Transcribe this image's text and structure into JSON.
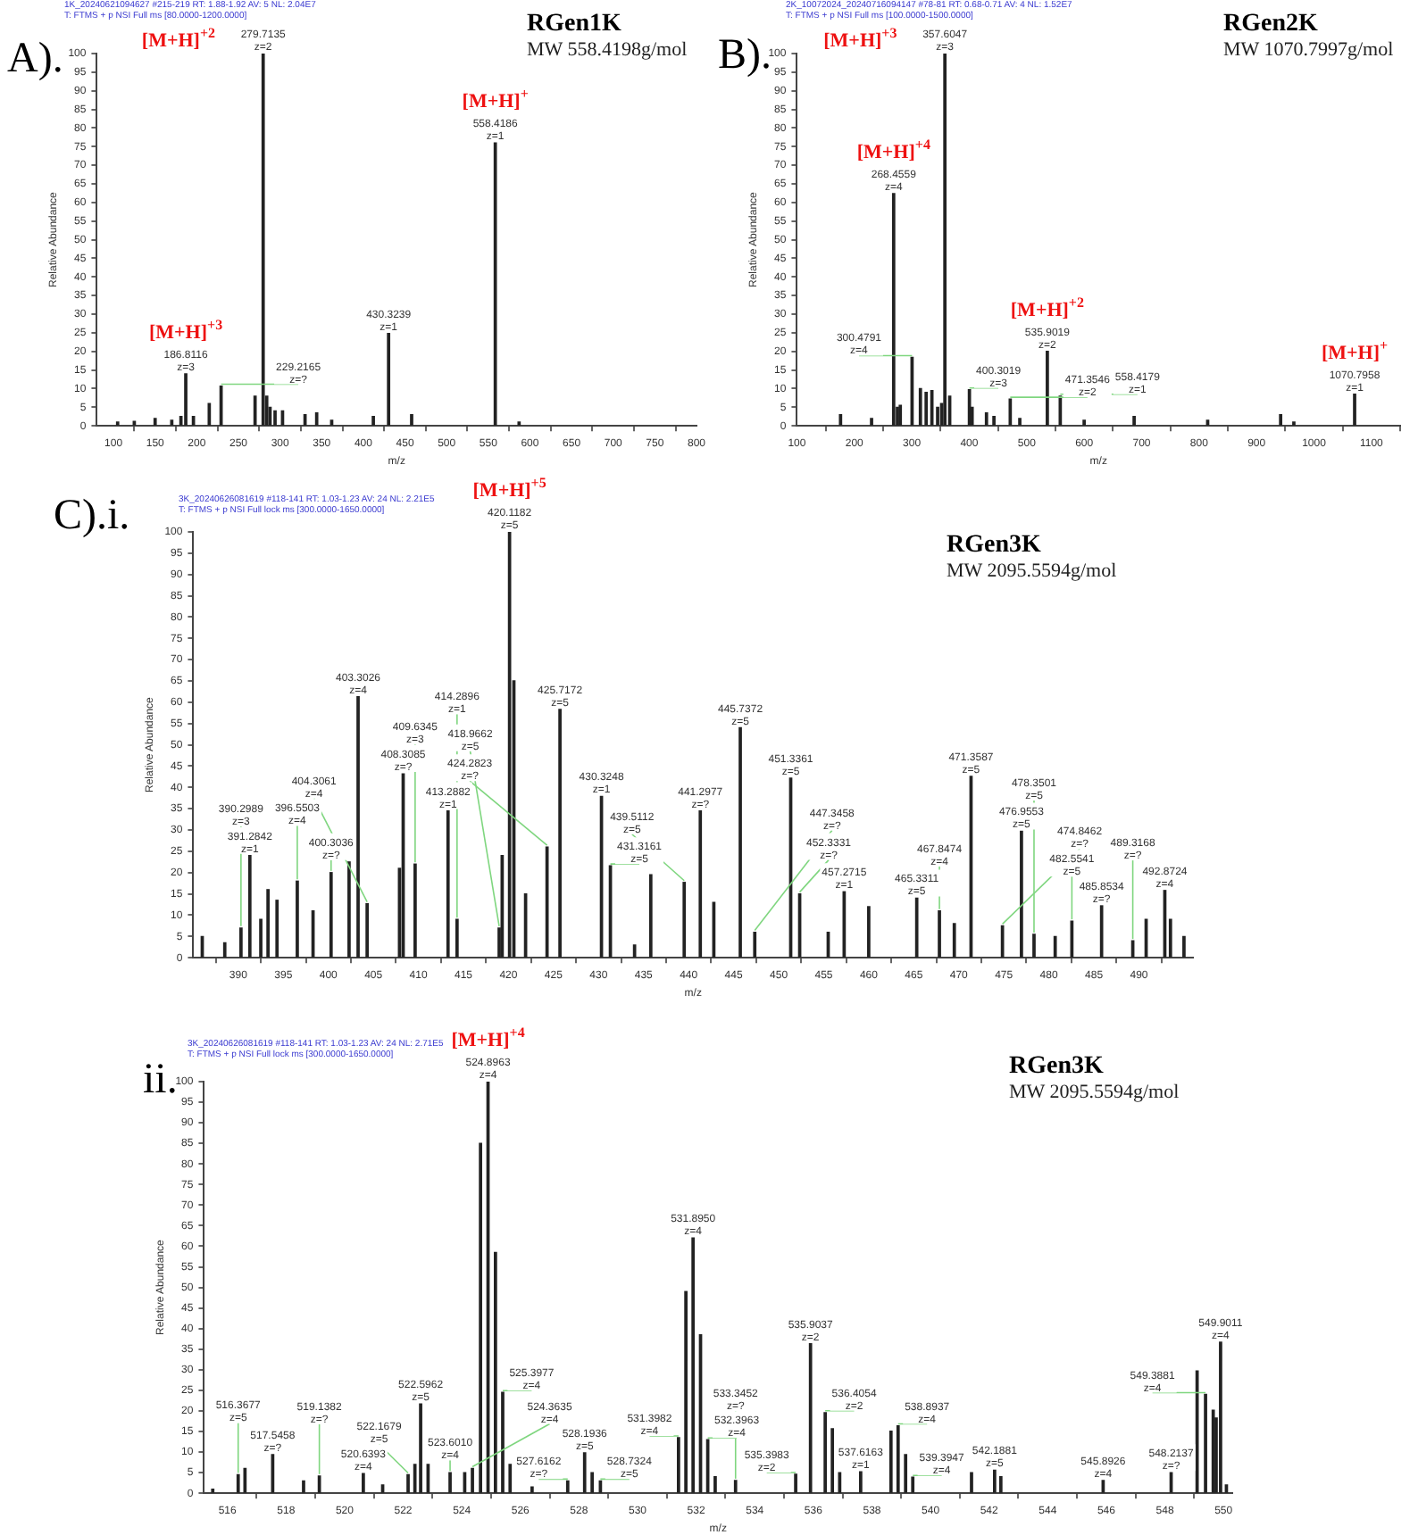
{
  "chart_data": [
    {
      "type": "bar",
      "title": "RGen1K",
      "subtitle": "MW 558.4198g/mol",
      "xlabel": "m/z",
      "ylabel": "Relative Abundance",
      "xlim": [
        80,
        800
      ],
      "xticks": [
        100,
        150,
        200,
        250,
        300,
        350,
        400,
        450,
        500,
        550,
        600,
        650,
        700,
        750,
        800
      ],
      "ylim": [
        0,
        100
      ],
      "yticks": [
        0,
        5,
        10,
        15,
        20,
        25,
        30,
        35,
        40,
        45,
        50,
        55,
        60,
        65,
        70,
        75,
        80,
        85,
        90,
        95,
        100
      ],
      "series": [
        {
          "color": "#222222",
          "x": [
            105,
            125,
            150,
            170,
            181,
            186.8116,
            196,
            215,
            229.2165,
            270,
            279.7135,
            284,
            288,
            294,
            303,
            330,
            344,
            362,
            412,
            430.3239,
            458,
            558.4186,
            587
          ],
          "values": [
            1,
            1.2,
            2,
            1.5,
            2.5,
            14,
            2.5,
            6,
            10.7,
            8,
            100,
            8,
            5,
            4,
            4,
            3,
            3.5,
            1.5,
            2.5,
            24.8,
            3,
            76,
            1
          ]
        }
      ],
      "annotations": [
        "A).",
        "1K_20240621094627 #215-219  RT: 1.88-1.92  AV: 5  NL: 2.04E7",
        "T: FTMS + p NSI Full ms [80.0000-1200.0000]",
        {
          "text": "279.7135 z=2",
          "x": 279.7135,
          "y": 100
        },
        {
          "text": "[M+H]$^{+2}$",
          "x": 279.7135,
          "y": 100
        },
        {
          "text": "558.4186 z=1",
          "x": 558.4186,
          "y": 76
        },
        {
          "text": "[M+H]$^{+}$",
          "x": 558.4186,
          "y": 76
        },
        {
          "text": "430.3239 z=1",
          "x": 430.3239,
          "y": 24.8
        },
        {
          "text": "186.8116 z=3",
          "x": 186.8116,
          "y": 14
        },
        {
          "text": "[M+H]$^{+3}$",
          "x": 186.8116,
          "y": 14
        },
        {
          "text": "229.2165 z=?",
          "x": 229.2165,
          "y": 10.7
        }
      ]
    },
    {
      "type": "bar",
      "title": "RGen2K",
      "subtitle": "MW 1070.7997g/mol",
      "xlabel": "m/z",
      "ylabel": "Relative Abundance",
      "xlim": [
        100,
        1150
      ],
      "xticks": [
        100,
        200,
        300,
        400,
        500,
        600,
        700,
        800,
        900,
        1000,
        1100
      ],
      "ylim": [
        0,
        100
      ],
      "yticks": [
        0,
        5,
        10,
        15,
        20,
        25,
        30,
        35,
        40,
        45,
        50,
        55,
        60,
        65,
        70,
        75,
        80,
        85,
        90,
        95,
        100
      ],
      "series": [
        {
          "color": "#222222",
          "x": [
            176,
            230,
            268.4559,
            275,
            280,
            300.4791,
            315,
            325,
            335,
            345,
            352,
            357.6047,
            366,
            400.3019,
            405,
            430,
            443,
            471.3546,
            488,
            535.9019,
            558.4179,
            600,
            687,
            815,
            942,
            965,
            1070.7958
          ],
          "values": [
            3,
            2,
            62.4,
            5,
            5.5,
            18.4,
            10,
            9,
            9.5,
            5,
            6,
            100,
            8,
            9.7,
            5,
            3.5,
            2.5,
            7.2,
            2,
            20,
            8,
            1.5,
            2.5,
            1.5,
            3,
            1,
            8.5
          ]
        }
      ],
      "annotations": [
        "B).",
        "2K_10072024_20240716094147 #78-81  RT: 0.68-0.71  AV: 4  NL: 1.52E7",
        "T: FTMS + p NSI Full ms [100.0000-1500.0000]",
        {
          "text": "357.6047 z=3",
          "x": 357.6047,
          "y": 100
        },
        {
          "text": "[M+H]$^{+3}$",
          "x": 357.6047,
          "y": 100
        },
        {
          "text": "268.4559 z=4",
          "x": 268.4559,
          "y": 62.4
        },
        {
          "text": "[M+H]$^{+4}$",
          "x": 268.4559,
          "y": 62.4
        },
        {
          "text": "535.9019 z=2",
          "x": 535.9019,
          "y": 20
        },
        {
          "text": "[M+H]$^{+2}$",
          "x": 535.9019,
          "y": 20
        },
        {
          "text": "1070.7958 z=1",
          "x": 1070.7958,
          "y": 8.5
        },
        {
          "text": "[M+H]$^{+}$",
          "x": 1070.7958,
          "y": 8.5
        },
        {
          "text": "300.4791 z=4",
          "x": 300.4791,
          "y": 18.4
        },
        {
          "text": "400.3019 z=3",
          "x": 400.3019,
          "y": 9.7
        },
        {
          "text": "471.3546 z=2",
          "x": 471.3546,
          "y": 7.2
        },
        {
          "text": "558.4179 z=1",
          "x": 558.4179,
          "y": 8
        }
      ]
    },
    {
      "type": "bar",
      "title": "RGen3K",
      "subtitle": "MW 2095.5594g/mol",
      "xlabel": "m/z",
      "ylabel": "Relative Abundance",
      "xlim": [
        385,
        496
      ],
      "xticks": [
        390,
        395,
        400,
        405,
        410,
        415,
        420,
        425,
        430,
        435,
        440,
        445,
        450,
        455,
        460,
        465,
        470,
        475,
        480,
        485,
        490
      ],
      "ylim": [
        0,
        100
      ],
      "yticks": [
        0,
        5,
        10,
        15,
        20,
        25,
        30,
        35,
        40,
        45,
        50,
        55,
        60,
        65,
        70,
        75,
        80,
        85,
        90,
        95,
        100
      ],
      "series": [
        {
          "color": "#222222",
          "x": [
            386,
            388.5,
            390.2989,
            391.2842,
            392.5,
            393.3,
            394.3,
            396.5503,
            398.3,
            400.3036,
            402.3,
            403.3026,
            404.3061,
            407.9,
            408.3085,
            409.6345,
            413.2882,
            414.2896,
            418.9662,
            419.3,
            420.1182,
            420.6,
            421.9,
            424.2823,
            425.7172,
            430.3248,
            431.3161,
            434,
            435.8,
            439.5112,
            441.2977,
            442.8,
            445.7372,
            447.3458,
            451.3361,
            452.3331,
            455.5,
            457.2715,
            460,
            465.3311,
            467.8474,
            469.5,
            471.3587,
            474.8462,
            476.9553,
            478.3501,
            480.7,
            482.5541,
            485.8534,
            489.3168,
            490.8,
            492.8724,
            493.5,
            495
          ],
          "values": [
            5,
            3.5,
            7,
            24,
            9,
            16,
            13.5,
            18,
            11,
            20,
            22.5,
            61.3,
            12.7,
            21,
            43.2,
            22,
            34.5,
            9,
            7,
            24,
            100,
            65,
            15,
            26,
            58.3,
            37.9,
            21.6,
            3,
            19.5,
            17.7,
            34.5,
            13,
            54,
            6,
            42.2,
            15,
            6,
            15.5,
            12,
            14,
            11,
            8,
            42.6,
            7.5,
            29.7,
            5.5,
            5,
            8.6,
            12.2,
            4,
            9,
            15.8,
            9,
            5
          ]
        }
      ],
      "annotations": [
        "C).i.",
        "3K_20240626081619 #118-141  RT: 1.03-1.23  AV: 24  NL: 2.21E5",
        "T: FTMS + p NSI Full lock ms [300.0000-1650.0000]",
        {
          "text": "420.1182 z=5",
          "x": 420.1182,
          "y": 100
        },
        {
          "text": "[M+H]$^{+5}$",
          "x": 420.1182,
          "y": 100
        },
        {
          "text": "403.3026 z=4",
          "x": 403.3026,
          "y": 61.3
        },
        {
          "text": "425.7172 z=5",
          "x": 425.7172,
          "y": 58.3
        },
        {
          "text": "445.7372 z=5",
          "x": 445.7372,
          "y": 54
        },
        {
          "text": "408.3085 z=?",
          "x": 408.3085,
          "y": 43.2
        },
        {
          "text": "471.3587 z=5",
          "x": 471.3587,
          "y": 42.6
        },
        {
          "text": "451.3361 z=5",
          "x": 451.3361,
          "y": 42.2
        },
        {
          "text": "430.3248 z=1",
          "x": 430.3248,
          "y": 37.9
        },
        {
          "text": "413.2882 z=1",
          "x": 413.2882,
          "y": 34.5
        },
        {
          "text": "441.2977 z=?",
          "x": 441.2977,
          "y": 34.5
        },
        {
          "text": "476.9553 z=5",
          "x": 476.9553,
          "y": 29.7
        },
        {
          "text": "424.2823 z=?",
          "x": 424.2823,
          "y": 26
        },
        {
          "text": "391.2842 z=1",
          "x": 391.2842,
          "y": 24
        },
        {
          "text": "409.6345 z=3",
          "x": 409.6345,
          "y": 22
        },
        {
          "text": "431.3161 z=5",
          "x": 431.3161,
          "y": 21.6
        },
        {
          "text": "400.3036 z=?",
          "x": 400.3036,
          "y": 20
        },
        {
          "text": "396.5503 z=4",
          "x": 396.5503,
          "y": 18
        },
        {
          "text": "439.5112 z=5",
          "x": 439.5112,
          "y": 17.7
        },
        {
          "text": "492.8724 z=4",
          "x": 492.8724,
          "y": 15.8
        },
        {
          "text": "457.2715 z=1",
          "x": 457.2715,
          "y": 15.5
        },
        {
          "text": "452.3331 z=?",
          "x": 452.3331,
          "y": 15
        },
        {
          "text": "465.3311 z=5",
          "x": 465.3311,
          "y": 14
        },
        {
          "text": "404.3061 z=4",
          "x": 404.3061,
          "y": 12.7
        },
        {
          "text": "485.8534 z=?",
          "x": 485.8534,
          "y": 12.2
        },
        {
          "text": "467.8474 z=4",
          "x": 467.8474,
          "y": 11
        },
        {
          "text": "414.2896 z=1",
          "x": 414.2896,
          "y": 9
        },
        {
          "text": "482.5541 z=5",
          "x": 482.5541,
          "y": 8.6
        },
        {
          "text": "474.8462 z=?",
          "x": 474.8462,
          "y": 7.5
        },
        {
          "text": "390.2989 z=3",
          "x": 390.2989,
          "y": 7
        },
        {
          "text": "418.9662 z=5",
          "x": 418.9662,
          "y": 7
        },
        {
          "text": "447.3458 z=?",
          "x": 447.3458,
          "y": 6
        },
        {
          "text": "478.3501 z=5",
          "x": 478.3501,
          "y": 5.5
        },
        {
          "text": "489.3168 z=?",
          "x": 489.3168,
          "y": 4
        }
      ]
    },
    {
      "type": "bar",
      "title": "RGen3K",
      "subtitle": "MW 2095.5594g/mol",
      "xlabel": "m/z",
      "ylabel": "Relative Abundance",
      "xlim": [
        515.2,
        550.3
      ],
      "xticks": [
        516,
        518,
        520,
        522,
        524,
        526,
        528,
        530,
        532,
        534,
        536,
        538,
        540,
        542,
        544,
        546,
        548,
        550
      ],
      "ylim": [
        0,
        100
      ],
      "yticks": [
        0,
        5,
        10,
        15,
        20,
        25,
        30,
        35,
        40,
        45,
        50,
        55,
        60,
        65,
        70,
        75,
        80,
        85,
        90,
        95,
        100
      ],
      "series": [
        {
          "color": "#222222",
          "x": [
            515.5,
            516.3677,
            516.6,
            517.5458,
            518.6,
            519.1382,
            520.6393,
            521.3,
            522.1679,
            522.4,
            522.5962,
            522.85,
            523.601,
            524.1,
            524.3635,
            524.64,
            524.8963,
            525.15,
            525.3977,
            525.65,
            526.4,
            527.6162,
            528.1936,
            528.45,
            528.7324,
            531.3982,
            531.65,
            531.895,
            532.15,
            532.3963,
            532.65,
            533.3452,
            535.3983,
            535.9037,
            536.4054,
            536.65,
            536.9,
            537.6163,
            538.65,
            538.8937,
            539.15,
            539.3947,
            541.4,
            542.1881,
            542.4,
            545.8926,
            548.2137,
            549.1,
            549.3881,
            549.65,
            549.75,
            549.9011,
            550.1
          ],
          "values": [
            1,
            4.5,
            6,
            9.4,
            3,
            4.2,
            4.8,
            2,
            4.5,
            7,
            21.7,
            7,
            5,
            5,
            6,
            85,
            100,
            58.5,
            24.5,
            7,
            1.5,
            3,
            9.8,
            5,
            3,
            13.5,
            49,
            62,
            38.5,
            13,
            4,
            3.1,
            4.6,
            36.3,
            19.6,
            15.7,
            5,
            5.2,
            15.1,
            16.4,
            9.4,
            3.9,
            5,
            5.6,
            4,
            3.1,
            5,
            29.7,
            24,
            20.2,
            18.3,
            36.7,
            2
          ]
        }
      ],
      "annotations": [
        "ii.",
        "3K_20240626081619 #118-141  RT: 1.03-1.23  AV: 24  NL: 2.71E5",
        "T: FTMS + p NSI Full lock ms [300.0000-1650.0000]",
        {
          "text": "524.8963 z=4",
          "x": 524.8963,
          "y": 100
        },
        {
          "text": "[M+H]$^{+4}$",
          "x": 524.8963,
          "y": 100
        },
        {
          "text": "531.8950 z=4",
          "x": 531.895,
          "y": 62
        },
        {
          "text": "549.9011 z=4",
          "x": 549.9011,
          "y": 36.7
        },
        {
          "text": "535.9037 z=2",
          "x": 535.9037,
          "y": 36.3
        },
        {
          "text": "549.3881 z=4",
          "x": 549.3881,
          "y": 24
        },
        {
          "text": "525.3977 z=4",
          "x": 525.3977,
          "y": 24.5
        },
        {
          "text": "522.5962 z=5",
          "x": 522.5962,
          "y": 21.7
        },
        {
          "text": "536.4054 z=2",
          "x": 536.4054,
          "y": 19.6
        },
        {
          "text": "538.8937 z=4",
          "x": 538.8937,
          "y": 16.4
        },
        {
          "text": "531.3982 z=4",
          "x": 531.3982,
          "y": 13.5
        },
        {
          "text": "532.3963 z=4",
          "x": 532.3963,
          "y": 13
        },
        {
          "text": "528.1936 z=5",
          "x": 528.1936,
          "y": 9.8
        },
        {
          "text": "517.5458 z=?",
          "x": 517.5458,
          "y": 9.4
        },
        {
          "text": "524.3635 z=4",
          "x": 524.3635,
          "y": 6
        },
        {
          "text": "542.1881 z=5",
          "x": 542.1881,
          "y": 5.6
        },
        {
          "text": "537.6163 z=1",
          "x": 537.6163,
          "y": 5.2
        },
        {
          "text": "523.6010 z=4",
          "x": 523.601,
          "y": 5
        },
        {
          "text": "548.2137 z=?",
          "x": 548.2137,
          "y": 5
        },
        {
          "text": "520.6393 z=4",
          "x": 520.6393,
          "y": 4.8
        },
        {
          "text": "535.3983 z=2",
          "x": 535.3983,
          "y": 4.6
        },
        {
          "text": "516.3677 z=5",
          "x": 516.3677,
          "y": 4.5
        },
        {
          "text": "522.1679 z=5",
          "x": 522.1679,
          "y": 4.5
        },
        {
          "text": "519.1382 z=?",
          "x": 519.1382,
          "y": 4.2
        },
        {
          "text": "539.3947 z=4",
          "x": 539.3947,
          "y": 3.9
        },
        {
          "text": "533.3452 z=?",
          "x": 533.3452,
          "y": 3.1
        },
        {
          "text": "545.8926 z=4",
          "x": 545.8926,
          "y": 3.1
        },
        {
          "text": "527.6162 z=?",
          "x": 527.6162,
          "y": 3
        },
        {
          "text": "528.7324 z=5",
          "x": 528.7324,
          "y": 3
        }
      ]
    }
  ]
}
